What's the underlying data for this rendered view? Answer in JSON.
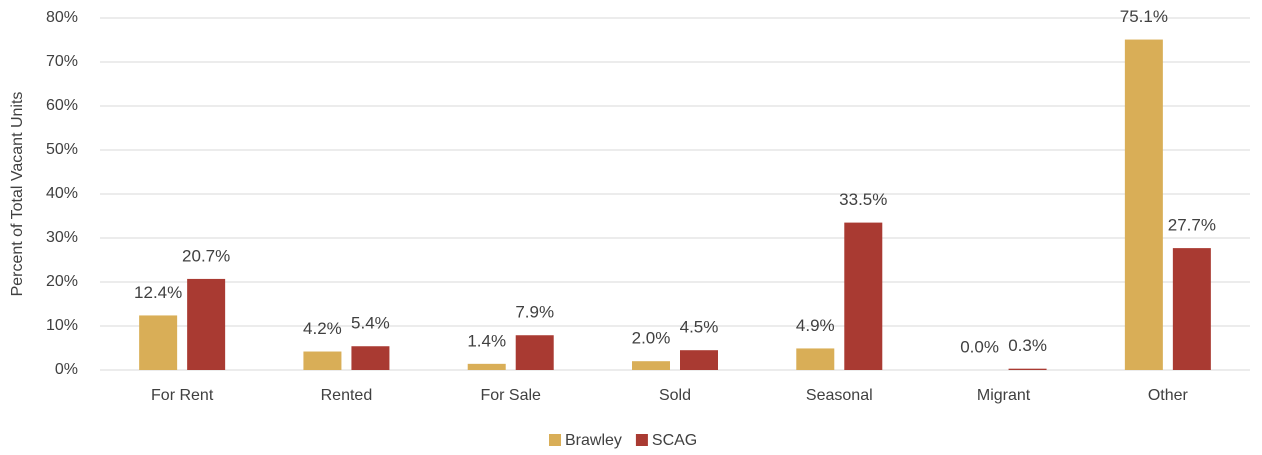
{
  "chart_data": {
    "type": "bar",
    "y_label": "Percent of Total Vacant Units",
    "categories": [
      "For Rent",
      "Rented",
      "For Sale",
      "Sold",
      "Seasonal",
      "Migrant",
      "Other"
    ],
    "series": [
      {
        "name": "Brawley",
        "color": "#d9ae57",
        "values": [
          12.4,
          4.2,
          1.4,
          2.0,
          4.9,
          0.0,
          75.1
        ],
        "value_labels": [
          "12.4%",
          "4.2%",
          "1.4%",
          "2.0%",
          "4.9%",
          "0.0%",
          "75.1%"
        ]
      },
      {
        "name": "SCAG",
        "color": "#a93a32",
        "values": [
          20.7,
          5.4,
          7.9,
          4.5,
          33.5,
          0.3,
          27.7
        ],
        "value_labels": [
          "20.7%",
          "5.4%",
          "7.9%",
          "4.5%",
          "33.5%",
          "0.3%",
          "27.7%"
        ]
      }
    ],
    "ylim": [
      0,
      80
    ],
    "yticks": [
      {
        "value": 0,
        "label": "0%"
      },
      {
        "value": 10,
        "label": "10%"
      },
      {
        "value": 20,
        "label": "20%"
      },
      {
        "value": 30,
        "label": "30%"
      },
      {
        "value": 40,
        "label": "40%"
      },
      {
        "value": 50,
        "label": "50%"
      },
      {
        "value": 60,
        "label": "60%"
      },
      {
        "value": 70,
        "label": "70%"
      },
      {
        "value": 80,
        "label": "80%"
      }
    ],
    "grid": true,
    "legend": "bottom"
  }
}
